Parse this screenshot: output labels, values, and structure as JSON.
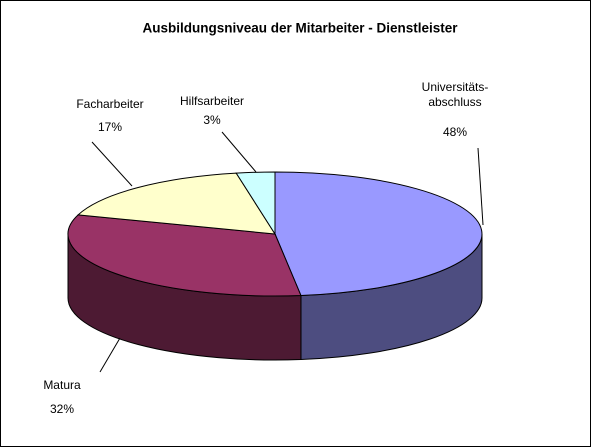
{
  "chart_data": {
    "type": "pie",
    "title": "Ausbildungsniveau der Mitarbeiter - Dienstleister",
    "categories": [
      "Universitäts-\nabschluss",
      "Matura",
      "Facharbeiter",
      "Hilfsarbeiter"
    ],
    "values": [
      48,
      32,
      17,
      3
    ],
    "value_labels": [
      "48%",
      "32%",
      "17%",
      "3%"
    ],
    "colors": [
      "#9999ff",
      "#993366",
      "#ffffcc",
      "#ccffff"
    ],
    "side_colors": [
      "#4d4d80",
      "#4d1a33",
      "#808066",
      "#668080"
    ]
  }
}
